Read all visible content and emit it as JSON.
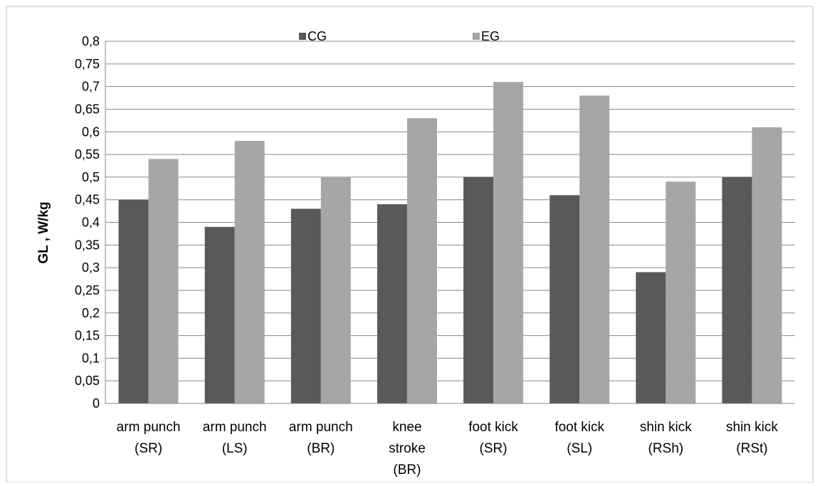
{
  "chart_data": {
    "type": "bar",
    "title": "",
    "xlabel": "",
    "ylabel": "GL , W/kg",
    "ylim": [
      0,
      0.8
    ],
    "ytick_step": 0.05,
    "grid": true,
    "legend_position": "top",
    "categories": [
      [
        "arm punch",
        "(SR)"
      ],
      [
        "arm punch",
        "(LS)"
      ],
      [
        "arm punch",
        "(BR)"
      ],
      [
        "knee",
        "stroke",
        "(BR)"
      ],
      [
        "foot kick",
        "(SR)"
      ],
      [
        "foot kick",
        "(SL)"
      ],
      [
        "shin kick",
        "(RSh)"
      ],
      [
        "shin kick",
        "(RSt)"
      ]
    ],
    "series": [
      {
        "name": "CG",
        "color": "#595959",
        "values": [
          0.45,
          0.39,
          0.43,
          0.44,
          0.5,
          0.46,
          0.29,
          0.5
        ]
      },
      {
        "name": "EG",
        "color": "#a6a6a6",
        "values": [
          0.54,
          0.58,
          0.5,
          0.63,
          0.71,
          0.68,
          0.49,
          0.61
        ]
      }
    ],
    "ytick_labels": [
      "0",
      "0,05",
      "0,1",
      "0,15",
      "0,2",
      "0,25",
      "0,3",
      "0,35",
      "0,4",
      "0,45",
      "0,5",
      "0,55",
      "0,6",
      "0,65",
      "0,7",
      "0,75",
      "0,8"
    ]
  }
}
